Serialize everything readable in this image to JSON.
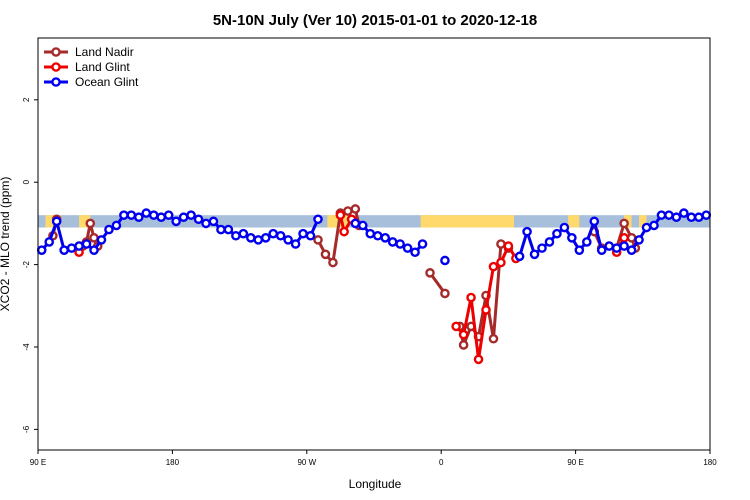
{
  "chart_data": {
    "type": "line",
    "title": "5N-10N July (Ver 10)   2015-01-01 to 2020-12-18",
    "xlabel": "Longitude",
    "ylabel": "XCO2 - MLO trend (ppm)",
    "xlim": [
      0,
      360
    ],
    "ylim": [
      -6.5,
      3.5
    ],
    "x_ticks": [
      {
        "value": 0,
        "label": "90 E"
      },
      {
        "value": 72,
        "label": "180"
      },
      {
        "value": 144,
        "label": "90 W"
      },
      {
        "value": 216,
        "label": "0"
      },
      {
        "value": 288,
        "label": "90 E"
      },
      {
        "value": 360,
        "label": "180"
      }
    ],
    "y_ticks": [
      {
        "value": 2,
        "label": "2"
      },
      {
        "value": 0,
        "label": "0"
      },
      {
        "value": -2,
        "label": "-2"
      },
      {
        "value": -4,
        "label": "-4"
      },
      {
        "value": -6,
        "label": "-6"
      }
    ],
    "grid": false,
    "legend_position": "top-left",
    "background_band": {
      "y_range": [
        -1.1,
        -0.8
      ],
      "base_color": "#a8bfdc",
      "highlight_color": "#ffd96b",
      "highlight_x": [
        [
          4,
          12
        ],
        [
          22,
          28
        ],
        [
          155,
          166
        ],
        [
          205,
          255
        ],
        [
          284,
          290
        ],
        [
          314,
          318
        ],
        [
          322,
          326
        ]
      ]
    },
    "series": [
      {
        "name": "Land Nadir",
        "color": "#a52a2a",
        "segments": [
          [
            [
              8,
              -1.3
            ],
            [
              10,
              -0.9
            ]
          ],
          [
            [
              24,
              -1.55
            ],
            [
              26,
              -1.45
            ],
            [
              28,
              -1.0
            ],
            [
              30,
              -1.35
            ],
            [
              32,
              -1.55
            ]
          ],
          [
            [
              150,
              -1.4
            ],
            [
              154,
              -1.75
            ],
            [
              158,
              -1.95
            ],
            [
              162,
              -0.75
            ],
            [
              166,
              -0.7
            ],
            [
              170,
              -0.65
            ],
            [
              172,
              -1.05
            ]
          ],
          [
            [
              210,
              -2.2
            ],
            [
              218,
              -2.7
            ]
          ],
          [
            [
              226,
              -3.5
            ],
            [
              228,
              -3.95
            ],
            [
              232,
              -3.5
            ],
            [
              236,
              -3.75
            ],
            [
              240,
              -2.75
            ],
            [
              244,
              -3.8
            ],
            [
              248,
              -1.5
            ],
            [
              252,
              -1.6
            ]
          ],
          [
            [
              298,
              -1.2
            ],
            [
              302,
              -1.6
            ]
          ],
          [
            [
              310,
              -1.6
            ],
            [
              314,
              -1.0
            ],
            [
              318,
              -1.35
            ],
            [
              320,
              -1.6
            ]
          ]
        ]
      },
      {
        "name": "Land Glint",
        "color": "#ee0000",
        "segments": [
          [
            [
              22,
              -1.7
            ]
          ],
          [
            [
              162,
              -0.8
            ],
            [
              164,
              -1.2
            ],
            [
              168,
              -0.9
            ]
          ],
          [
            [
              224,
              -3.5
            ],
            [
              228,
              -3.7
            ],
            [
              232,
              -2.8
            ],
            [
              236,
              -4.3
            ],
            [
              240,
              -3.1
            ],
            [
              244,
              -2.05
            ],
            [
              248,
              -1.95
            ],
            [
              252,
              -1.55
            ],
            [
              256,
              -1.85
            ]
          ],
          [
            [
              310,
              -1.7
            ],
            [
              314,
              -1.35
            ]
          ]
        ]
      },
      {
        "name": "Ocean Glint",
        "color": "#0000ee",
        "segments": [
          [
            [
              2,
              -1.65
            ],
            [
              6,
              -1.45
            ],
            [
              10,
              -0.95
            ],
            [
              14,
              -1.65
            ],
            [
              18,
              -1.6
            ],
            [
              22,
              -1.55
            ],
            [
              26,
              -1.5
            ],
            [
              30,
              -1.65
            ],
            [
              34,
              -1.4
            ],
            [
              38,
              -1.15
            ],
            [
              42,
              -1.05
            ],
            [
              46,
              -0.8
            ],
            [
              50,
              -0.8
            ],
            [
              54,
              -0.85
            ],
            [
              58,
              -0.75
            ],
            [
              62,
              -0.8
            ],
            [
              66,
              -0.85
            ],
            [
              70,
              -0.8
            ],
            [
              74,
              -0.95
            ],
            [
              78,
              -0.85
            ],
            [
              82,
              -0.8
            ],
            [
              86,
              -0.9
            ],
            [
              90,
              -1.0
            ],
            [
              94,
              -0.95
            ],
            [
              98,
              -1.15
            ],
            [
              102,
              -1.15
            ],
            [
              106,
              -1.3
            ],
            [
              110,
              -1.25
            ],
            [
              114,
              -1.35
            ],
            [
              118,
              -1.4
            ],
            [
              122,
              -1.35
            ],
            [
              126,
              -1.25
            ],
            [
              130,
              -1.3
            ],
            [
              134,
              -1.4
            ],
            [
              138,
              -1.5
            ],
            [
              142,
              -1.25
            ],
            [
              146,
              -1.3
            ],
            [
              150,
              -0.9
            ]
          ],
          [
            [
              170,
              -1.0
            ],
            [
              174,
              -1.05
            ],
            [
              178,
              -1.25
            ],
            [
              182,
              -1.3
            ],
            [
              186,
              -1.35
            ],
            [
              190,
              -1.45
            ],
            [
              194,
              -1.5
            ],
            [
              198,
              -1.6
            ],
            [
              202,
              -1.7
            ],
            [
              206,
              -1.5
            ]
          ],
          [
            [
              218,
              -1.9
            ]
          ],
          [
            [
              258,
              -1.8
            ],
            [
              262,
              -1.2
            ],
            [
              266,
              -1.75
            ],
            [
              270,
              -1.6
            ],
            [
              274,
              -1.45
            ],
            [
              278,
              -1.25
            ],
            [
              282,
              -1.1
            ],
            [
              286,
              -1.35
            ],
            [
              290,
              -1.65
            ],
            [
              294,
              -1.45
            ],
            [
              298,
              -0.95
            ],
            [
              302,
              -1.65
            ],
            [
              306,
              -1.55
            ],
            [
              310,
              -1.6
            ],
            [
              314,
              -1.55
            ],
            [
              318,
              -1.65
            ],
            [
              322,
              -1.4
            ],
            [
              326,
              -1.1
            ],
            [
              330,
              -1.05
            ],
            [
              334,
              -0.8
            ],
            [
              338,
              -0.8
            ],
            [
              342,
              -0.85
            ],
            [
              346,
              -0.75
            ],
            [
              350,
              -0.85
            ],
            [
              354,
              -0.85
            ],
            [
              358,
              -0.8
            ]
          ]
        ]
      }
    ]
  }
}
